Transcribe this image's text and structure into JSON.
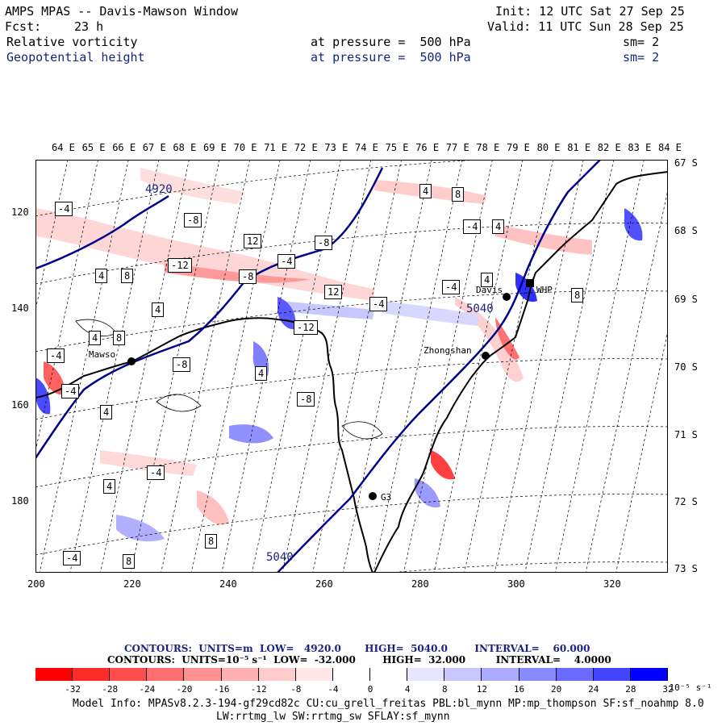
{
  "header": {
    "title": "AMPS MPAS -- Davis-Mawson Window",
    "fcst_label": "Fcst:",
    "fcst_value": "23 h",
    "init": "Init: 12 UTC Sat 27 Sep 25",
    "valid": "Valid: 11 UTC Sun 28 Sep 25",
    "field1": "Relative vorticity",
    "field1_pressure": "at pressure =  500 hPa",
    "field1_sm": "sm= 2",
    "field2": "Geopotential height",
    "field2_pressure": "at pressure =  500 hPa",
    "field2_sm": "sm= 2"
  },
  "map": {
    "top_lon_labels": [
      "64 E",
      "65 E",
      "66 E",
      "67 E",
      "68 E",
      "69 E",
      "70 E",
      "71 E",
      "72 E",
      "73 E",
      "74 E",
      "75 E",
      "76 E",
      "77 E",
      "78 E",
      "79 E",
      "80 E",
      "81 E",
      "82 E",
      "83 E",
      "84 E"
    ],
    "right_lat_labels": [
      "67 S",
      "68 S",
      "69 S",
      "70 S",
      "71 S",
      "72 S",
      "73 S"
    ],
    "left_y_ticks": [
      "120",
      "140",
      "160",
      "180"
    ],
    "bottom_x_ticks": [
      "200",
      "220",
      "240",
      "260",
      "280",
      "300",
      "320"
    ],
    "stations": [
      "Mawso",
      "Davis",
      "Zhongshan",
      "WHP",
      "G3"
    ],
    "height_labels": [
      "4920",
      "5040",
      "5040"
    ],
    "vort_labels": [
      "-4",
      "-8",
      "-12",
      "4",
      "8",
      "12",
      "-4",
      "-8",
      "4",
      "8",
      "-4",
      "4",
      "-8",
      "4",
      "12",
      "-12",
      "-4",
      "4",
      "8",
      "-4",
      "4",
      "8",
      "-4",
      "-8",
      "4",
      "-4",
      "-8",
      "4",
      "-4",
      "4",
      "8",
      "-4",
      "8"
    ]
  },
  "colors": {
    "neg_strong": "#ff0000",
    "pos_strong": "#0000ff",
    "height_contour": "#00008b"
  },
  "contour_info": {
    "line1": "CONTOURS:  UNITS=m  LOW=   4920.0       HIGH=  5040.0        INTERVAL=    60.000",
    "line2": "CONTOURS:  UNITS=10⁻⁵ s⁻¹  LOW=  -32.000        HIGH=  32.000         INTERVAL=    4.0000"
  },
  "colorbar": {
    "ticks": [
      "-32",
      "-28",
      "-24",
      "-20",
      "-16",
      "-12",
      "-8",
      "-4",
      "0",
      "4",
      "8",
      "12",
      "16",
      "20",
      "24",
      "28",
      "32"
    ],
    "units": "10⁻⁵ s⁻¹",
    "colors": [
      "#ff0000",
      "#ff2a2a",
      "#ff4c4c",
      "#ff6e6e",
      "#ff9090",
      "#ffb0b0",
      "#ffcccc",
      "#ffe6e6",
      "#ffffff",
      "#ffffff",
      "#e6e6ff",
      "#c8c8ff",
      "#aaaaff",
      "#8a8aff",
      "#6a6aff",
      "#4444ff",
      "#0000ff"
    ]
  },
  "footer": {
    "model_info": "Model Info: MPASv8.2.3-194-gf29cd82c CU:cu_grell_freitas PBL:bl_mynn MP:mp_thompson SF:sf_noahmp 8.0",
    "model_info2": "LW:rrtmg_lw SW:rrtmg_sw SFLAY:sf_mynn"
  }
}
